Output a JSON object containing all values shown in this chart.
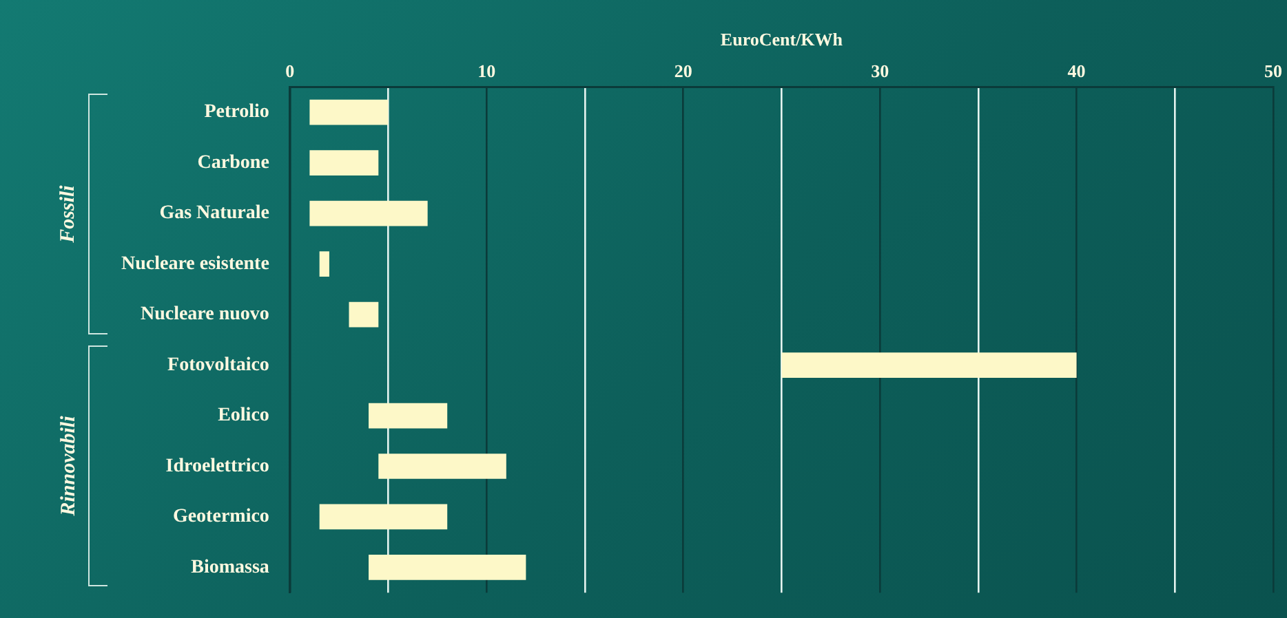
{
  "chart_data": {
    "type": "bar",
    "orientation": "horizontal",
    "xlabel": "EuroCent/KWh",
    "categories": [
      "Petrolio",
      "Carbone",
      "Gas Naturale",
      "Nucleare esistente",
      "Nucleare nuovo",
      "Fotovoltaico",
      "Eolico",
      "Idroelettrico",
      "Geotermico",
      "Biomassa"
    ],
    "base": [
      1,
      1,
      1,
      1.5,
      3,
      25,
      4,
      4.5,
      1.5,
      4
    ],
    "values": [
      4,
      3.5,
      6,
      0.5,
      1.5,
      15,
      4,
      6.5,
      6.5,
      8
    ],
    "color": "#fdf8c8",
    "xlim": [
      0,
      50
    ],
    "xticks": [
      0,
      {
        "value": 5,
        "label": null
      },
      10,
      {
        "value": 15,
        "label": null
      },
      20,
      {
        "value": 25,
        "label": null
      },
      30,
      {
        "value": 35,
        "label": null
      },
      40,
      {
        "value": 45,
        "label": null
      },
      50
    ],
    "grid": "x",
    "legend": false,
    "annotations": [
      "Fossili",
      "Rinnovabili"
    ]
  }
}
